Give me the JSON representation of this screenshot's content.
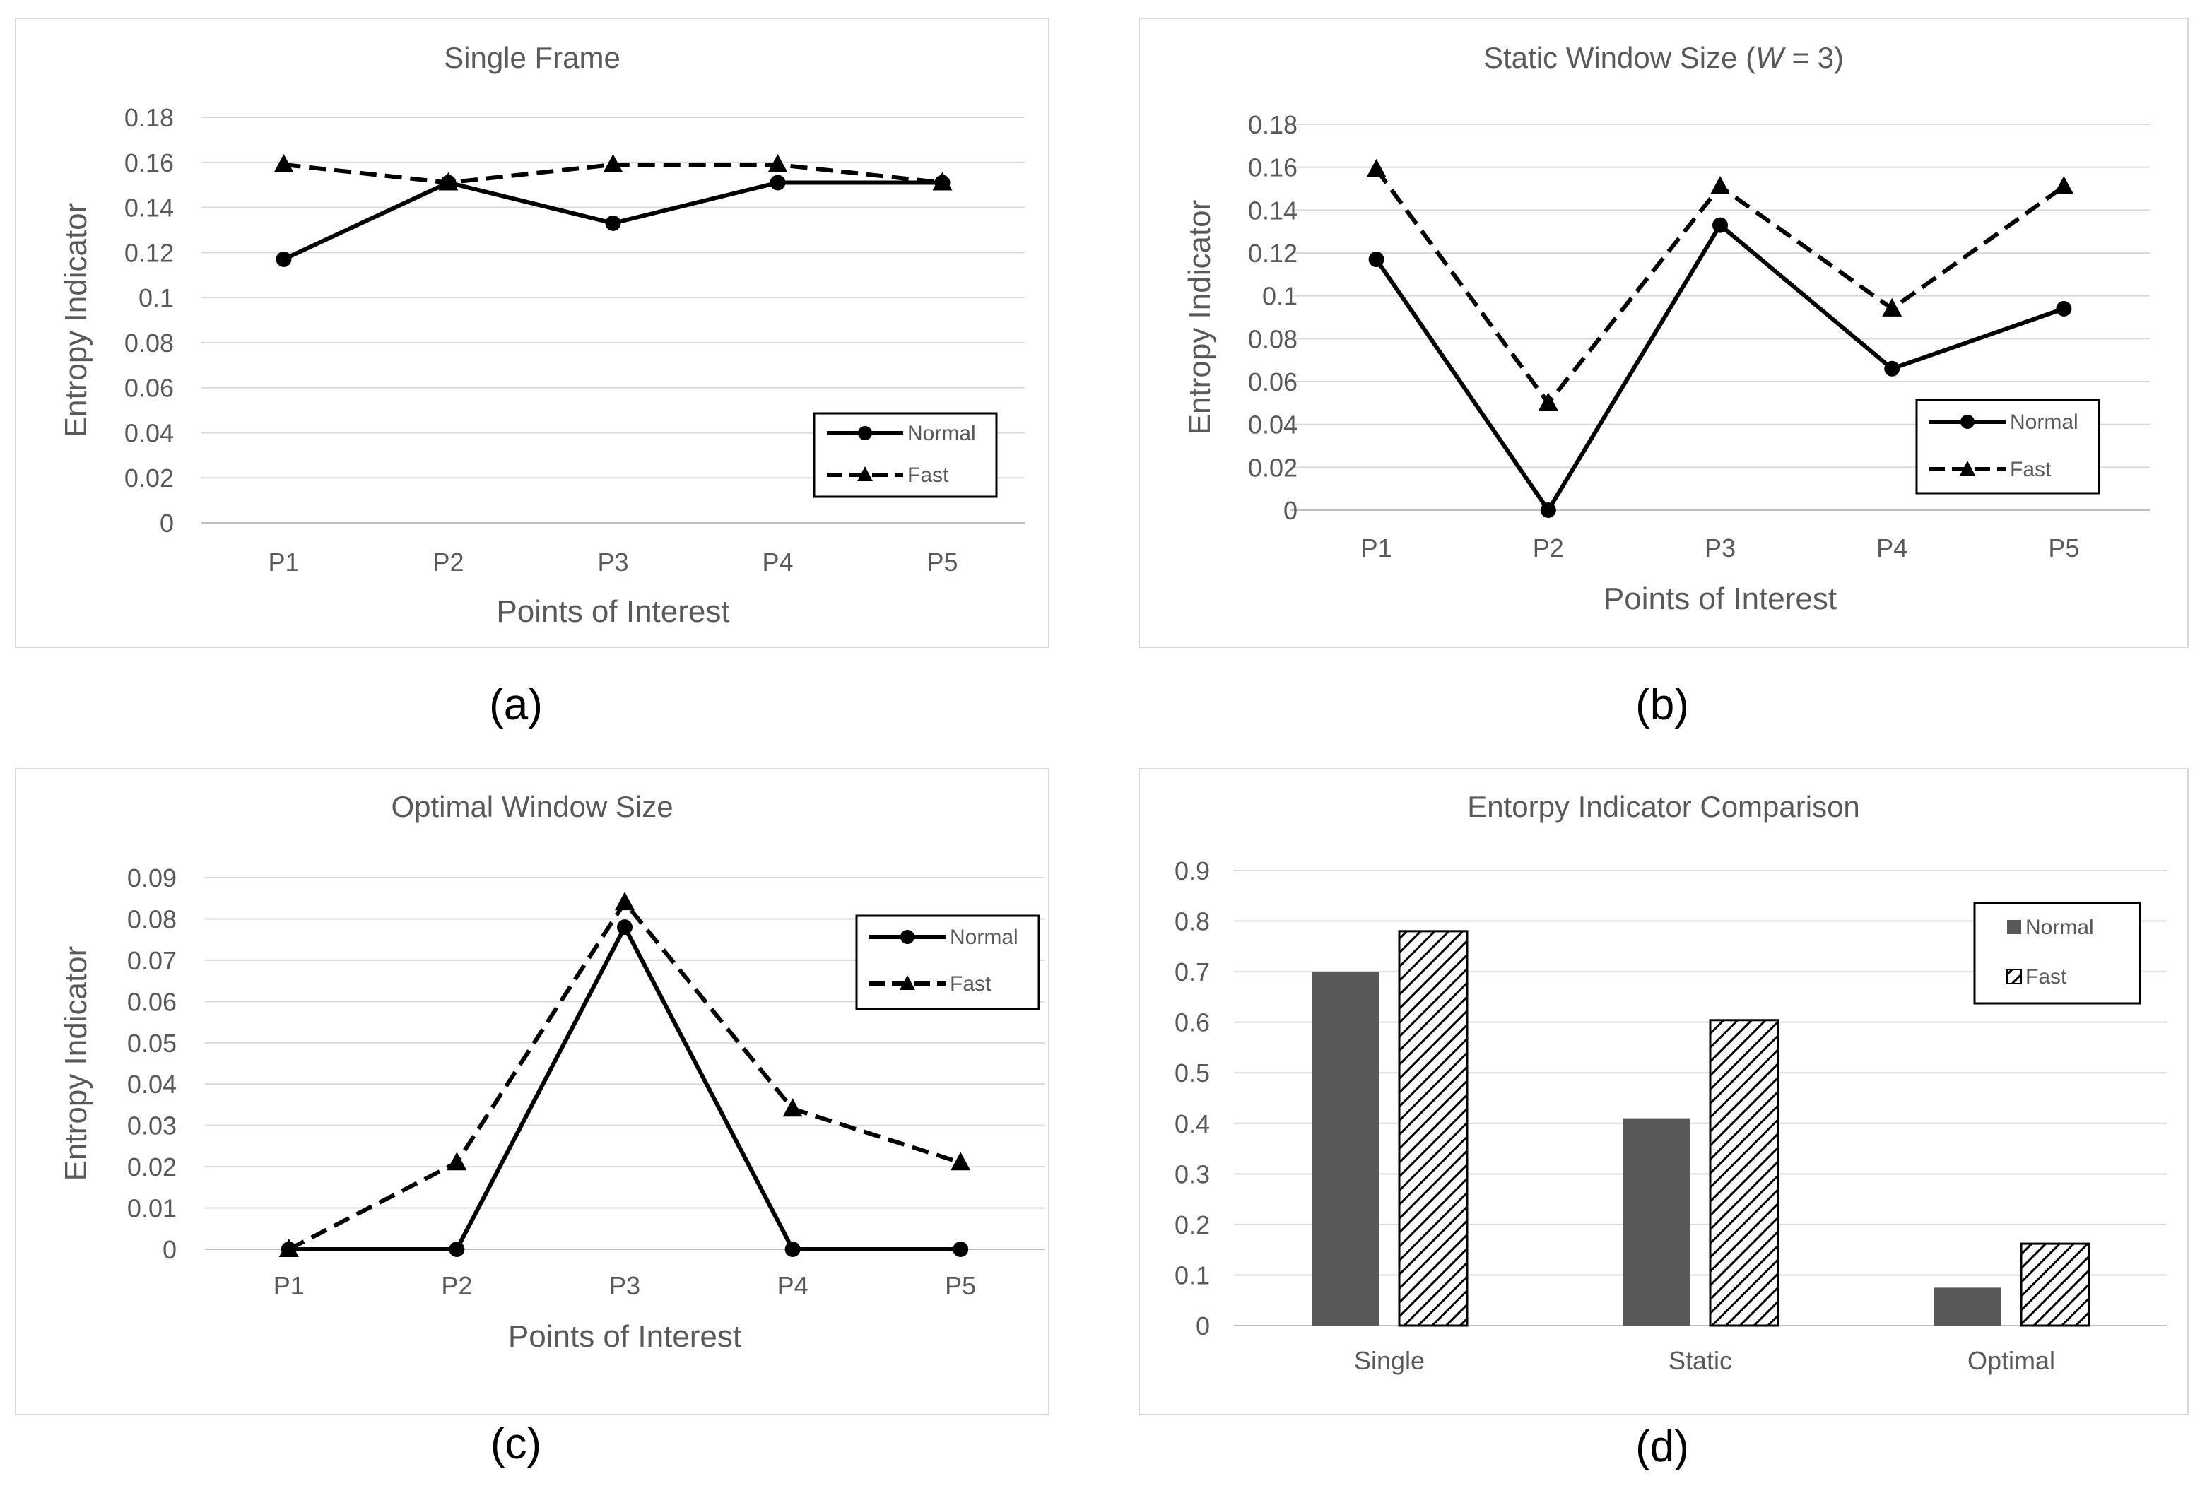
{
  "panels": [
    {
      "label": "(a)"
    },
    {
      "label": "(b)"
    },
    {
      "label": "(c)"
    },
    {
      "label": "(d)"
    }
  ],
  "chart_data": [
    {
      "type": "line",
      "title": "Single Frame",
      "xlabel": "Points of Interest",
      "ylabel": "Entropy Indicator",
      "categories": [
        "P1",
        "P2",
        "P3",
        "P4",
        "P5"
      ],
      "ylim": [
        0,
        0.18
      ],
      "yticks": [
        "0",
        "0.02",
        "0.04",
        "0.06",
        "0.08",
        "0.1",
        "0.12",
        "0.14",
        "0.16",
        "0.18"
      ],
      "grid": true,
      "legend": "bottom-right",
      "series": [
        {
          "name": "Normal",
          "style": "solid",
          "marker": "circle",
          "values": [
            0.117,
            0.151,
            0.133,
            0.151,
            0.151
          ]
        },
        {
          "name": "Fast",
          "style": "dashed",
          "marker": "triangle",
          "values": [
            0.159,
            0.151,
            0.159,
            0.159,
            0.151
          ]
        }
      ]
    },
    {
      "type": "line",
      "title_parts": [
        "Static Window Size (",
        "W",
        " = 3)"
      ],
      "xlabel": "Points of Interest",
      "ylabel": "Entropy Indicator",
      "categories": [
        "P1",
        "P2",
        "P3",
        "P4",
        "P5"
      ],
      "ylim": [
        0,
        0.18
      ],
      "yticks": [
        "0",
        "0.02",
        "0.04",
        "0.06",
        "0.08",
        "0.1",
        "0.12",
        "0.14",
        "0.16",
        "0.18"
      ],
      "grid": true,
      "legend": "bottom-right",
      "series": [
        {
          "name": "Normal",
          "style": "solid",
          "marker": "circle",
          "values": [
            0.117,
            0.0,
            0.133,
            0.066,
            0.094
          ]
        },
        {
          "name": "Fast",
          "style": "dashed",
          "marker": "triangle",
          "values": [
            0.159,
            0.05,
            0.151,
            0.094,
            0.151
          ]
        }
      ]
    },
    {
      "type": "line",
      "title": "Optimal Window Size",
      "xlabel": "Points of Interest",
      "ylabel": "Entropy Indicator",
      "categories": [
        "P1",
        "P2",
        "P3",
        "P4",
        "P5"
      ],
      "ylim": [
        0,
        0.09
      ],
      "yticks": [
        "0",
        "0.01",
        "0.02",
        "0.03",
        "0.04",
        "0.05",
        "0.06",
        "0.07",
        "0.08",
        "0.09"
      ],
      "grid": true,
      "legend": "top-right",
      "series": [
        {
          "name": "Normal",
          "style": "solid",
          "marker": "circle",
          "values": [
            0,
            0,
            0.078,
            0,
            0
          ]
        },
        {
          "name": "Fast",
          "style": "dashed",
          "marker": "triangle",
          "values": [
            0,
            0.021,
            0.084,
            0.034,
            0.021
          ]
        }
      ]
    },
    {
      "type": "bar",
      "title": "Entorpy Indicator Comparison",
      "xlabel": "",
      "ylabel": "",
      "categories": [
        "Single",
        "Static",
        "Optimal"
      ],
      "ylim": [
        0,
        0.9
      ],
      "yticks": [
        "0",
        "0.1",
        "0.2",
        "0.3",
        "0.4",
        "0.5",
        "0.6",
        "0.7",
        "0.8",
        "0.9"
      ],
      "grid": true,
      "legend": "top-right",
      "series": [
        {
          "name": "Normal",
          "fill": "solid",
          "color": "#595959",
          "values": [
            0.7,
            0.41,
            0.075
          ]
        },
        {
          "name": "Fast",
          "fill": "hatched",
          "color": "#000000",
          "values": [
            0.78,
            0.604,
            0.162
          ]
        }
      ]
    }
  ]
}
